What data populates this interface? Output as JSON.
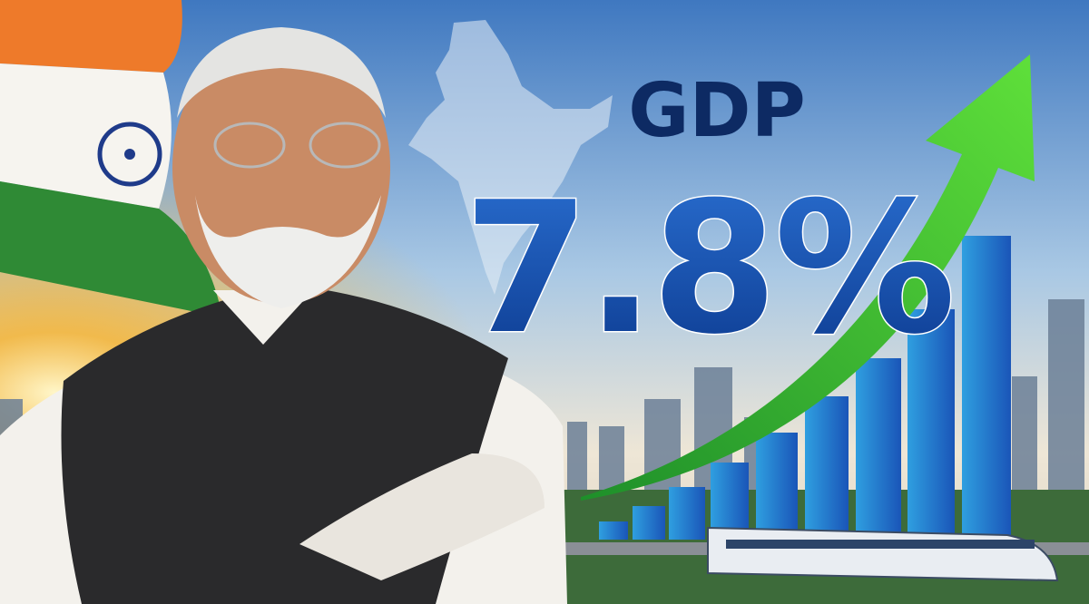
{
  "headline": {
    "label": "GDP",
    "value": "7.8%"
  }
}
